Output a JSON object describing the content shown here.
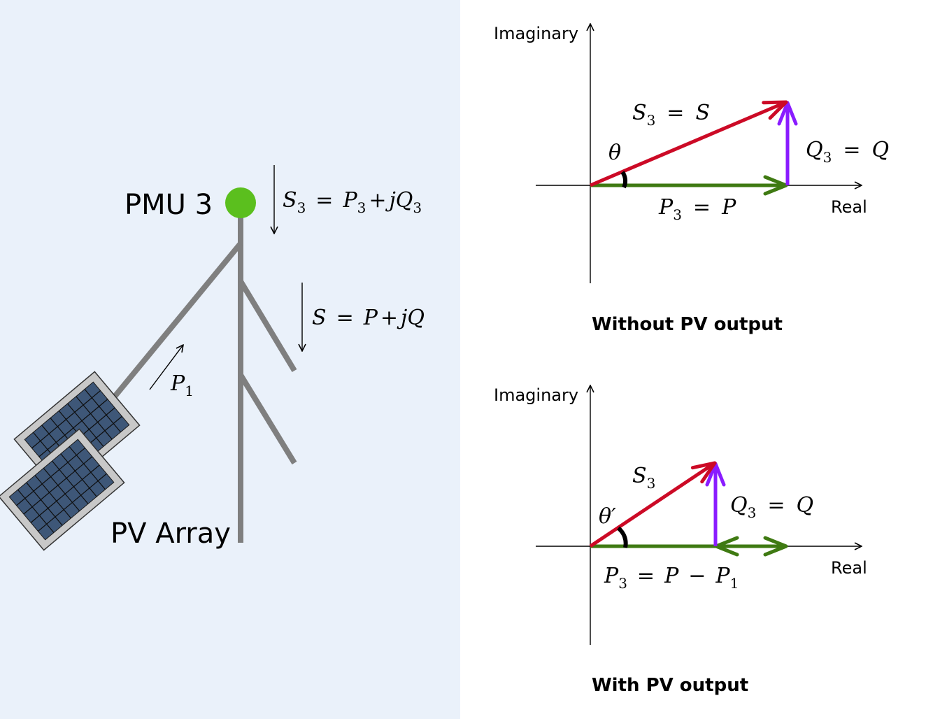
{
  "left": {
    "pmu_label": "PMU 3",
    "pv_label": "PV Array",
    "s3_flow": {
      "lhs": "S",
      "lhs_sub": "3",
      "eq": "=",
      "t1": "P",
      "t1_sub": "3",
      "plus": "+",
      "t2": "jQ",
      "t2_sub": "3"
    },
    "s_flow": {
      "lhs": "S",
      "eq": "=",
      "t1": "P",
      "plus": "+",
      "t2": "jQ"
    },
    "p1_flow": {
      "sym": "P",
      "sub": "1"
    },
    "colors": {
      "pole": "#7f7f7f",
      "pmu_dot": "#5bbf1e",
      "panel_cell": "#3e5778",
      "panel_frame": "#c8c8c8",
      "background": "#eaf1fa"
    }
  },
  "top": {
    "caption": "Without PV output",
    "axis_real": "Real",
    "axis_imag": "Imaginary",
    "s_label": {
      "sym": "S",
      "sub": "3",
      "eq": "=",
      "rhs": "S"
    },
    "q_label": {
      "sym": "Q",
      "sub": "3",
      "eq": "=",
      "rhs": "Q"
    },
    "p_label": {
      "sym": "P",
      "sub": "3",
      "eq": "=",
      "rhs": "P"
    },
    "angle": "θ"
  },
  "bottom": {
    "caption": "With PV output",
    "axis_real": "Real",
    "axis_imag": "Imaginary",
    "s_label": {
      "sym": "S",
      "sub": "3"
    },
    "q_label": {
      "sym": "Q",
      "sub": "3",
      "eq": "=",
      "rhs": "Q"
    },
    "p_label": {
      "sym": "P",
      "sub": "3",
      "eq": "=",
      "t1": "P",
      "minus": "−",
      "t2": "P",
      "t2_sub": "1"
    },
    "angle": "θ′"
  },
  "phasor_colors": {
    "s": "#cc0a26",
    "q": "#8a1cff",
    "p": "#3f7a12",
    "angle": "#000000"
  }
}
